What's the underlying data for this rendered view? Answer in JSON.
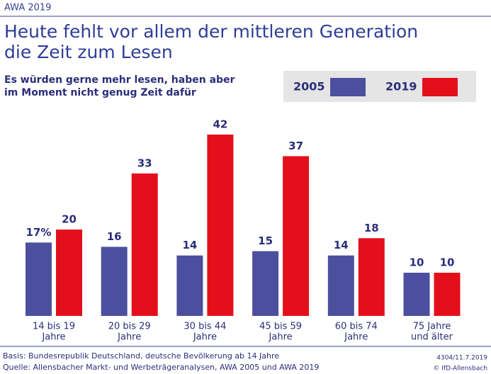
{
  "header": "AWA 2019",
  "chart_data": {
    "type": "bar",
    "title": [
      "Heute fehlt vor allem der mittleren Generation",
      "die Zeit zum Lesen"
    ],
    "subtitle": [
      "Es würden gerne mehr lesen, haben aber",
      "im Moment nicht genug Zeit dafür"
    ],
    "categories": [
      [
        "14 bis 19",
        "Jahre"
      ],
      [
        "20 bis 29",
        "Jahre"
      ],
      [
        "30 bis 44",
        "Jahre"
      ],
      [
        "45 bis 59",
        "Jahre"
      ],
      [
        "60 bis 74",
        "Jahre"
      ],
      [
        "75 Jahre",
        "und älter"
      ]
    ],
    "series": [
      {
        "name": "2005",
        "color": "#4b4f9e",
        "values": [
          17,
          16,
          14,
          15,
          14,
          10
        ],
        "value_labels": [
          "17%",
          "16",
          "14",
          "15",
          "14",
          "10"
        ]
      },
      {
        "name": "2019",
        "color": "#e3101b",
        "values": [
          20,
          33,
          42,
          37,
          18,
          10
        ],
        "value_labels": [
          "20",
          "33",
          "42",
          "37",
          "18",
          "10"
        ]
      }
    ]
  },
  "footer": {
    "left": [
      "Basis: Bundesrepublik Deutschland, deutsche Bevölkerung ab 14 Jahre",
      "Quelle: Allensbacher Markt- und Werbeträgeranalysen, AWA 2005 und AWA 2019"
    ],
    "right": [
      "4304/11.7.2019",
      "© IfD-Allensbach"
    ]
  }
}
